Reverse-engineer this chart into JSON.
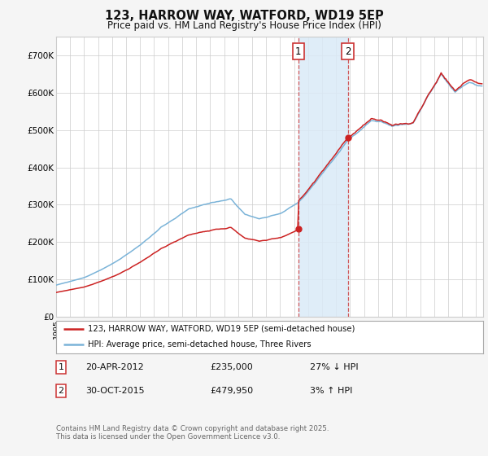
{
  "title": "123, HARROW WAY, WATFORD, WD19 5EP",
  "subtitle": "Price paid vs. HM Land Registry's House Price Index (HPI)",
  "ylabel_ticks": [
    "£0",
    "£100K",
    "£200K",
    "£300K",
    "£400K",
    "£500K",
    "£600K",
    "£700K"
  ],
  "ylim": [
    0,
    750000
  ],
  "xlim_start": 1995.0,
  "xlim_end": 2025.5,
  "hpi_color": "#7ab3d8",
  "price_color": "#cc2222",
  "transaction1_year": 2012.3,
  "transaction1_price": 235000,
  "transaction1_label": "1",
  "transaction2_year": 2015.83,
  "transaction2_price": 479950,
  "transaction2_label": "2",
  "legend_line1": "123, HARROW WAY, WATFORD, WD19 5EP (semi-detached house)",
  "legend_line2": "HPI: Average price, semi-detached house, Three Rivers",
  "note1_label": "1",
  "note1_date": "20-APR-2012",
  "note1_price": "£235,000",
  "note1_pct": "27% ↓ HPI",
  "note2_label": "2",
  "note2_date": "30-OCT-2015",
  "note2_price": "£479,950",
  "note2_pct": "3% ↑ HPI",
  "footer": "Contains HM Land Registry data © Crown copyright and database right 2025.\nThis data is licensed under the Open Government Licence v3.0.",
  "background_color": "#f5f5f5",
  "plot_bg_color": "#ffffff",
  "grid_color": "#cccccc",
  "shade_color": "#daeaf7",
  "dashed_color": "#cc3333"
}
